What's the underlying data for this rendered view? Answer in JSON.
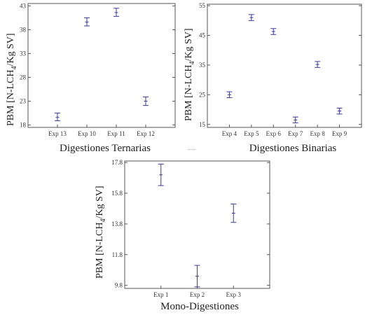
{
  "chart_data": [
    {
      "id": "ternarias",
      "type": "errorbar",
      "xlabel": "Digestiones Ternarias",
      "ylabel_prefix": "PBM [N-LCH",
      "ylabel_sub": "4",
      "ylabel_suffix": "/Kg SV]",
      "categories": [
        "Exp  13",
        "Exp 10",
        "Exp 11",
        "Exp 12"
      ],
      "ylim": [
        17.5,
        43.5
      ],
      "yticks": [
        18,
        23,
        28,
        33,
        38,
        43
      ],
      "points": [
        {
          "x": "Exp  13",
          "y": 19.6,
          "low": 18.9,
          "high": 20.5
        },
        {
          "x": "Exp 10",
          "y": 39.6,
          "low": 38.8,
          "high": 40.5
        },
        {
          "x": "Exp 11",
          "y": 41.6,
          "low": 40.8,
          "high": 42.5
        },
        {
          "x": "Exp 12",
          "y": 23.0,
          "low": 22.1,
          "high": 23.9
        }
      ]
    },
    {
      "id": "binarias",
      "type": "errorbar",
      "xlabel": "Digestiones Binarias",
      "ylabel_prefix": "PBM [N-LCH",
      "ylabel_sub": "4",
      "ylabel_suffix": "/Kg SV]",
      "categories": [
        "Exp 4",
        "Exp 5",
        "Exp 6",
        "Exp 7",
        "Exp 8",
        "Exp 9"
      ],
      "ylim": [
        14,
        55.5
      ],
      "yticks": [
        15,
        25,
        35,
        45,
        55
      ],
      "points": [
        {
          "x": "Exp 4",
          "y": 25.0,
          "low": 24.0,
          "high": 26.0
        },
        {
          "x": "Exp 5",
          "y": 51.0,
          "low": 50.0,
          "high": 52.0
        },
        {
          "x": "Exp 6",
          "y": 46.3,
          "low": 45.3,
          "high": 47.3
        },
        {
          "x": "Exp 7",
          "y": 16.5,
          "low": 15.5,
          "high": 17.5
        },
        {
          "x": "Exp 8",
          "y": 35.2,
          "low": 34.2,
          "high": 36.2
        },
        {
          "x": "Exp 9",
          "y": 19.5,
          "low": 18.5,
          "high": 20.5
        }
      ]
    },
    {
      "id": "mono",
      "type": "errorbar",
      "xlabel": "Mono-Digestiones",
      "ylabel_prefix": "PBM [N-LCH",
      "ylabel_sub": "4",
      "ylabel_suffix": "/Kg SV]",
      "categories": [
        "Exp 1",
        "Exp 2",
        "Exp 3"
      ],
      "ylim": [
        9.6,
        17.9
      ],
      "yticks": [
        9.8,
        11.8,
        13.8,
        15.8,
        17.8
      ],
      "points": [
        {
          "x": "Exp 1",
          "y": 17.0,
          "low": 16.3,
          "high": 17.7
        },
        {
          "x": "Exp 2",
          "y": 10.4,
          "low": 9.7,
          "high": 11.1
        },
        {
          "x": "Exp 3",
          "y": 14.5,
          "low": 13.9,
          "high": 15.1
        }
      ]
    }
  ],
  "colors": {
    "marker": "#3a3a9a",
    "frame": "#555555",
    "text": "#222222"
  }
}
